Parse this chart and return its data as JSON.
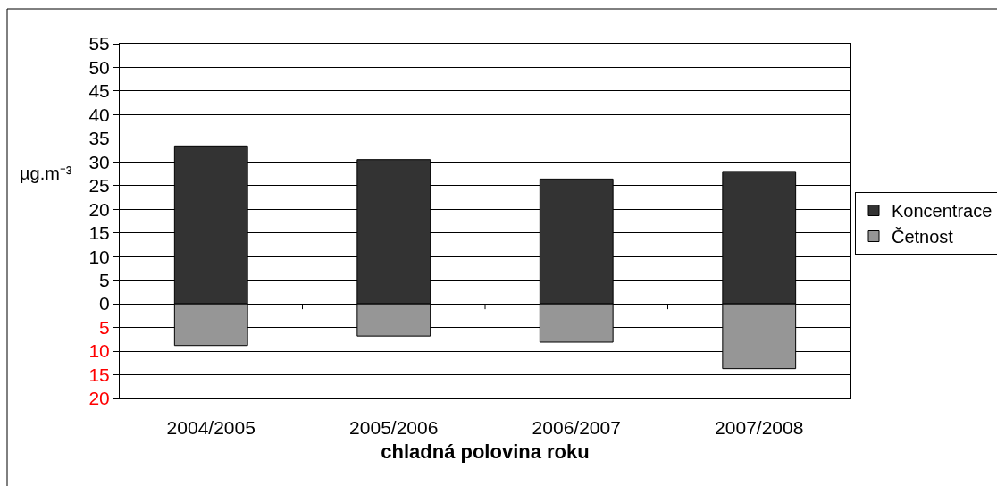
{
  "chart_data": {
    "type": "bar",
    "stacked": true,
    "categories": [
      "2004/2005",
      "2005/2006",
      "2006/2007",
      "2007/2008"
    ],
    "series": [
      {
        "name": "Koncentrace",
        "color": "#333333",
        "values": [
          33.4,
          30.5,
          26.4,
          28.0
        ]
      },
      {
        "name": "Četnost",
        "color": "#969696",
        "values": [
          -8.8,
          -6.8,
          -8.1,
          -13.7
        ]
      }
    ],
    "xlabel": "chladná polovina roku",
    "ylabel": "µg.m⁻³",
    "ylim": [
      -20,
      55
    ],
    "yticks": [
      {
        "value": -20,
        "label": "20"
      },
      {
        "value": -15,
        "label": "15"
      },
      {
        "value": -10,
        "label": "10"
      },
      {
        "value": -5,
        "label": "5"
      },
      0,
      5,
      10,
      15,
      20,
      25,
      30,
      35,
      40,
      45,
      50,
      55
    ],
    "grid": "y",
    "legend": "right"
  }
}
